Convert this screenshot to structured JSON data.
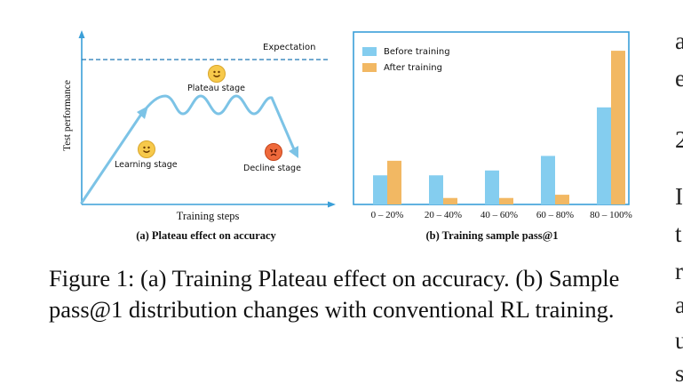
{
  "figure_a": {
    "expectation_label": "Expectation",
    "plateau_label": "Plateau stage",
    "learning_label": "Learning stage",
    "decline_label": "Decline stage",
    "ylabel": "Test  performance",
    "xlabel": "Training steps",
    "caption": "(a) Plateau effect on accuracy",
    "colors": {
      "curve": "#7cc3e6",
      "axis": "#3a9fd8",
      "expectation": "#1f77b4"
    },
    "icons": [
      "smile-face-icon",
      "smile-face-icon",
      "angry-face-icon"
    ]
  },
  "chart_data": {
    "type": "bar",
    "title": "",
    "caption": "(b) Training sample pass@1",
    "categories": [
      "0 – 20%",
      "20 – 40%",
      "40 – 60%",
      "60 – 80%",
      "80 – 100%"
    ],
    "series": [
      {
        "name": "Before training",
        "color": "#84cdef",
        "values": [
          18,
          18,
          21,
          30,
          60
        ]
      },
      {
        "name": "After training",
        "color": "#f2b863",
        "values": [
          27,
          4,
          4,
          6,
          95
        ]
      }
    ],
    "ylim": [
      0,
      100
    ],
    "legend": "top-left",
    "grid": false
  },
  "caption": {
    "text": "Figure 1: (a) Training Plateau effect on accuracy. (b) Sample pass@1 distribution changes with conventional RL training."
  },
  "side_text": {
    "lines": [
      "a",
      "e",
      "2",
      "I",
      "t",
      "r",
      "a",
      "u",
      "s"
    ]
  }
}
